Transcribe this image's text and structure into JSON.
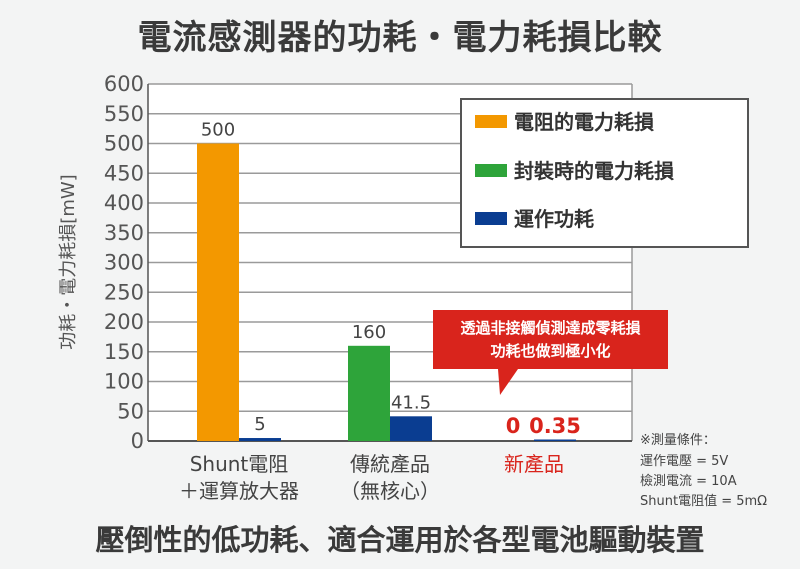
{
  "title": "電流感測器的功耗・電力耗損比較",
  "footer": "壓倒性的低功耗、適合運用於各型電池驅動裝置",
  "chart_data": {
    "type": "bar",
    "ylabel": "功耗・電力耗損[mW]",
    "ylim": [
      0,
      600
    ],
    "yticks": [
      0,
      50,
      100,
      150,
      200,
      250,
      300,
      350,
      400,
      450,
      500,
      550,
      600
    ],
    "grid": true,
    "legend_position": "top-right",
    "categories": [
      {
        "line1": "Shunt電阻",
        "line2": "＋運算放大器"
      },
      {
        "line1": "傳統產品",
        "line2": "（無核心）"
      },
      {
        "line1": "新產品",
        "line2": ""
      }
    ],
    "series": [
      {
        "name": "電阻的電力耗損",
        "color": "#f39800",
        "values": [
          500,
          null,
          null
        ]
      },
      {
        "name": "封裝時的電力耗損",
        "color": "#2ea43a",
        "values": [
          null,
          160,
          null
        ]
      },
      {
        "name": "運作功耗",
        "color": "#0a3d91",
        "values": [
          5,
          41.5,
          0.35
        ]
      }
    ],
    "data_labels": [
      {
        "text": "500",
        "category": 0,
        "series": 0,
        "value": 500
      },
      {
        "text": "5",
        "category": 0,
        "series": 2,
        "value": 5
      },
      {
        "text": "160",
        "category": 1,
        "series": 1,
        "value": 160
      },
      {
        "text": "41.5",
        "category": 1,
        "series": 2,
        "value": 41.5
      },
      {
        "text": "0",
        "category": 2,
        "series": 1,
        "value": 0
      },
      {
        "text": "0.35",
        "category": 2,
        "series": 2,
        "value": 0.35
      }
    ],
    "callout": {
      "line1": "透過非接觸偵測達成零耗損",
      "line2": "功耗也做到極小化"
    },
    "notes": [
      "※測量條件：",
      "運作電壓 = 5V",
      "檢測電流 = 10A",
      "Shunt電阻值 = 5mΩ"
    ]
  },
  "colors": {
    "accent_red": "#d9241c"
  }
}
